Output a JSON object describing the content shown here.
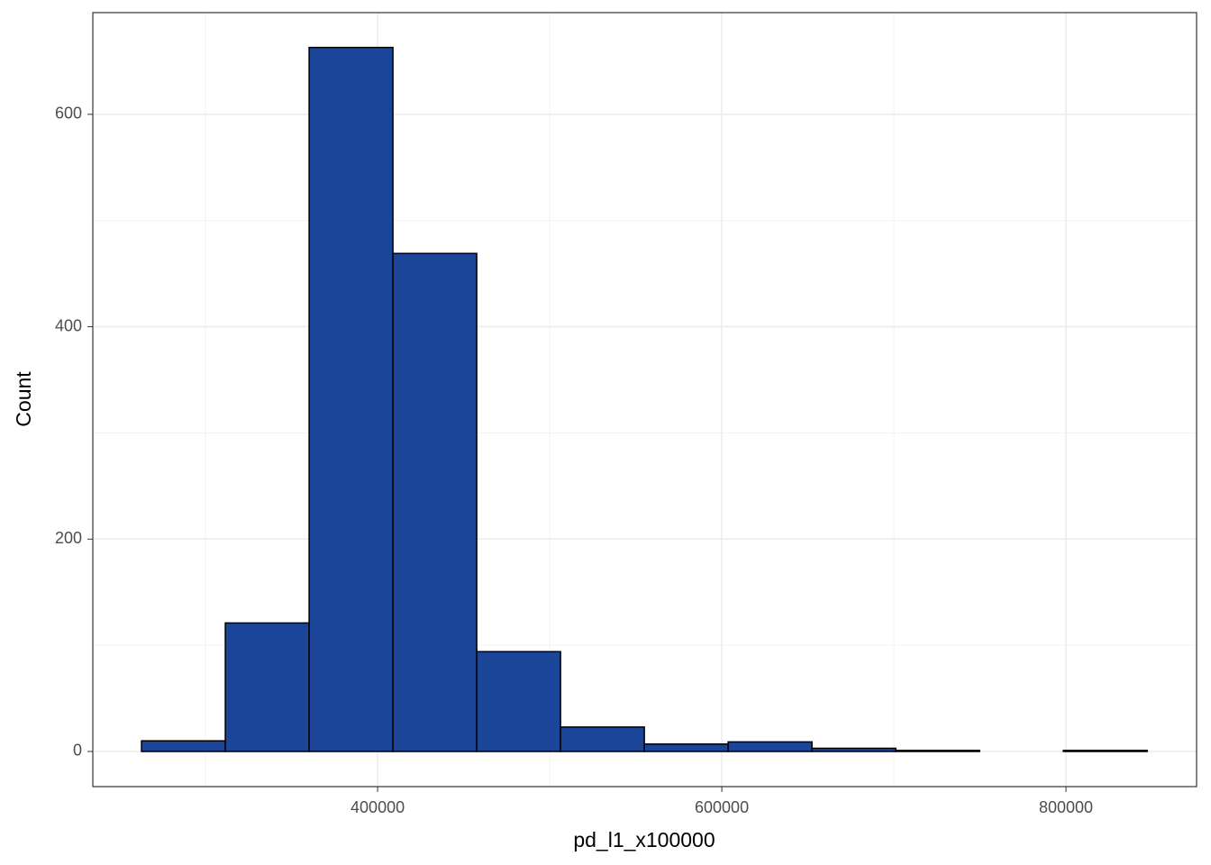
{
  "chart_data": {
    "type": "histogram",
    "xlabel": "pd_l1_x100000",
    "ylabel": "Count",
    "bins": [
      262800,
      311500,
      360200,
      408900,
      457600,
      506300,
      555000,
      603700,
      652400,
      701100,
      749800,
      798500,
      847200
    ],
    "values": [
      10,
      121,
      663,
      469,
      94,
      23,
      7,
      9,
      3,
      1,
      0,
      1
    ],
    "color": "#1a4599",
    "edgecolor": "#000000",
    "xlim": [
      234500,
      875900
    ],
    "ylim": [
      -33.1,
      695.8
    ],
    "xticks": [
      400000,
      600000,
      800000
    ],
    "yticks": [
      0,
      200,
      400,
      600
    ],
    "xminor": [
      300000,
      500000,
      700000
    ],
    "yminor": [
      100,
      300,
      500
    ],
    "grid": true
  }
}
